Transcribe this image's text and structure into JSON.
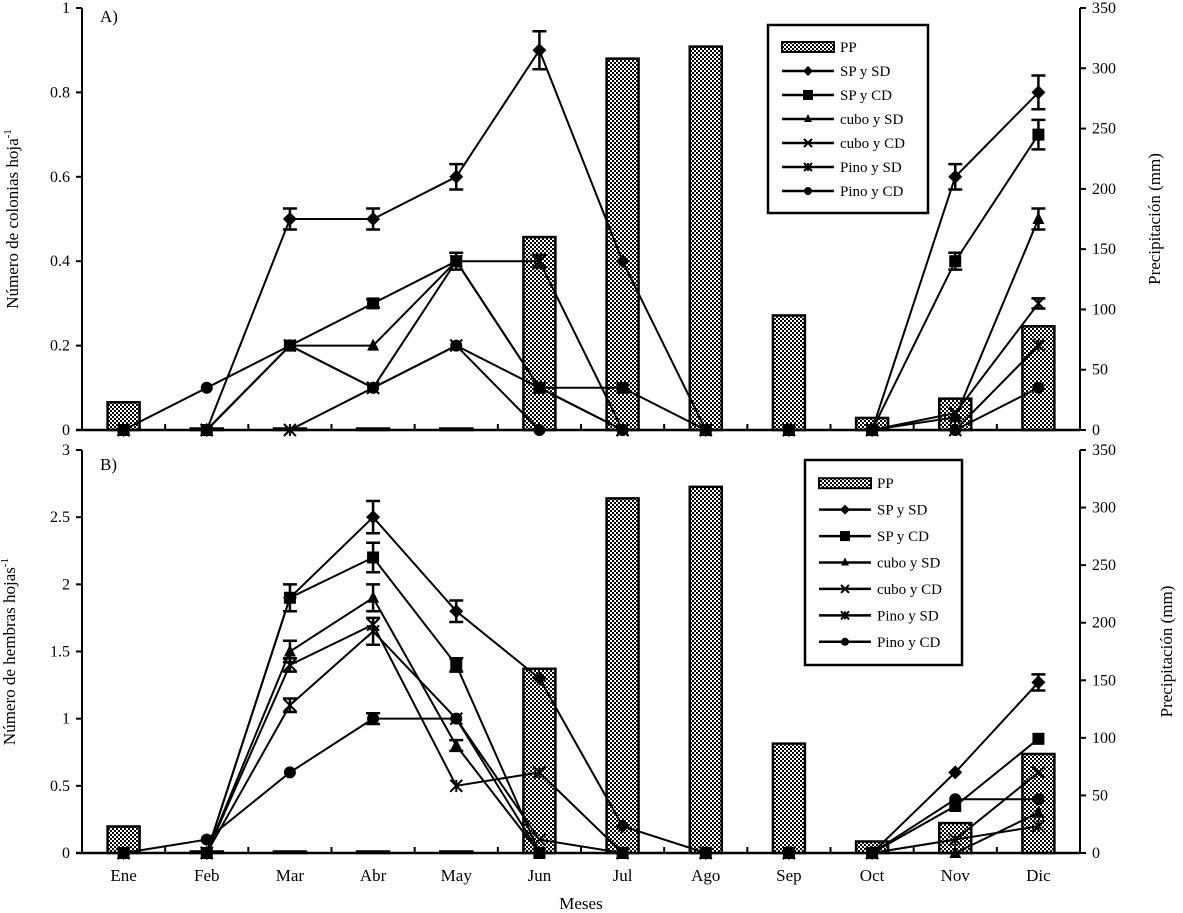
{
  "chart_data": [
    {
      "type": "bar+line",
      "panel_label": "A)",
      "xlabel": "",
      "ylabel": "Número de colonias hoja",
      "ylabel_superscript": "-1",
      "y2label": "Precipitación (mm)",
      "ylim": [
        0,
        1
      ],
      "yticks": [
        "0",
        "0.2",
        "0.4",
        "0.6",
        "0.8",
        "1"
      ],
      "y2lim": [
        0,
        350
      ],
      "y2ticks": [
        "0",
        "50",
        "100",
        "150",
        "200",
        "250",
        "300",
        "350"
      ],
      "categories": [
        "Ene",
        "Feb",
        "Mar",
        "Abr",
        "May",
        "Jun",
        "Jul",
        "Ago",
        "Sep",
        "Oct",
        "Nov",
        "Dic"
      ],
      "legend_placement": "top-right",
      "bars": {
        "name": "PP",
        "values": [
          23,
          0,
          0,
          1,
          0,
          160,
          308,
          318,
          95,
          10,
          26,
          86
        ]
      },
      "series": [
        {
          "name": "SP y SD",
          "marker": "diamond",
          "values": [
            0,
            0,
            0.5,
            0.5,
            0.6,
            0.9,
            0.4,
            0,
            0,
            0,
            0.6,
            0.8
          ],
          "err": [
            0,
            0,
            0.025,
            0.025,
            0.03,
            0.045,
            0,
            0,
            0,
            0,
            0.03,
            0.04
          ]
        },
        {
          "name": "SP y CD",
          "marker": "square",
          "values": [
            0,
            0,
            0.2,
            0.3,
            0.4,
            0.1,
            0.1,
            0,
            0,
            0,
            0.4,
            0.7
          ],
          "err": [
            0,
            0,
            0,
            0.01,
            0.02,
            0,
            0,
            0,
            0,
            0,
            0.02,
            0.035
          ]
        },
        {
          "name": "cubo y SD",
          "marker": "triangle",
          "values": [
            0,
            0,
            0.2,
            0.2,
            0.4,
            0.1,
            0,
            0,
            0,
            0,
            0.03,
            0.5
          ],
          "err": [
            0,
            0,
            0,
            0,
            0,
            0,
            0,
            0,
            0,
            0,
            0,
            0.025
          ]
        },
        {
          "name": "cubo y CD",
          "marker": "x",
          "values": [
            0,
            0,
            0.2,
            0.1,
            0.2,
            0.1,
            0,
            0,
            0,
            0,
            0.04,
            0.3
          ],
          "err": [
            0,
            0,
            0,
            0,
            0,
            0,
            0,
            0,
            0,
            0,
            0,
            0.012
          ]
        },
        {
          "name": "Pino y SD",
          "marker": "asterisk",
          "values": [
            0,
            0,
            0,
            0.1,
            0.4,
            0.4,
            0,
            0,
            0,
            0,
            0,
            0.2
          ],
          "err": [
            0,
            0,
            0,
            0,
            0,
            0.015,
            0,
            0,
            0,
            0,
            0,
            0
          ]
        },
        {
          "name": "Pino y CD",
          "marker": "circle",
          "values": [
            0,
            0.1,
            0.2,
            0.1,
            0.2,
            0,
            0,
            0,
            0,
            0,
            0,
            0.1
          ],
          "err": [
            0,
            0,
            0,
            0,
            0,
            0,
            0,
            0,
            0,
            0,
            0,
            0
          ]
        }
      ]
    },
    {
      "type": "bar+line",
      "panel_label": "B)",
      "xlabel": "Meses",
      "ylabel": "Número de hembras hojas",
      "ylabel_superscript": "-1",
      "y2label": "Precipitación (mm)",
      "ylim": [
        0,
        3
      ],
      "yticks": [
        "0",
        "0.5",
        "1",
        "1.5",
        "2",
        "2.5",
        "3"
      ],
      "y2lim": [
        0,
        350
      ],
      "y2ticks": [
        "0",
        "50",
        "100",
        "150",
        "200",
        "250",
        "300",
        "350"
      ],
      "categories": [
        "Ene",
        "Feb",
        "Mar",
        "Abr",
        "May",
        "Jun",
        "Jul",
        "Ago",
        "Sep",
        "Oct",
        "Nov",
        "Dic"
      ],
      "legend_placement": "top-right",
      "bars": {
        "name": "PP",
        "values": [
          23,
          0,
          0,
          1,
          0,
          160,
          308,
          318,
          95,
          10,
          26,
          86
        ]
      },
      "series": [
        {
          "name": "SP y SD",
          "marker": "diamond",
          "values": [
            0,
            0,
            1.9,
            2.5,
            1.8,
            1.3,
            0.2,
            0,
            0,
            0,
            0.6,
            1.27
          ],
          "err": [
            0,
            0,
            0,
            0.12,
            0.08,
            0,
            0,
            0,
            0,
            0,
            0,
            0.06
          ]
        },
        {
          "name": "SP y CD",
          "marker": "square",
          "values": [
            0,
            0,
            1.9,
            2.2,
            1.4,
            0,
            0,
            0,
            0,
            0,
            0.35,
            0.85
          ],
          "err": [
            0,
            0,
            0.1,
            0.11,
            0.05,
            0,
            0,
            0,
            0,
            0,
            0,
            0
          ]
        },
        {
          "name": "cubo y SD",
          "marker": "triangle",
          "values": [
            0,
            0,
            1.5,
            1.9,
            0.8,
            0,
            0,
            0,
            0,
            0,
            0,
            0.3
          ],
          "err": [
            0,
            0,
            0.08,
            0.1,
            0.04,
            0,
            0,
            0,
            0,
            0,
            0,
            0
          ]
        },
        {
          "name": "cubo y CD",
          "marker": "x",
          "values": [
            0,
            0,
            1.1,
            1.65,
            1.0,
            0.1,
            0,
            0,
            0,
            0,
            0.1,
            0.6
          ],
          "err": [
            0,
            0,
            0.05,
            0.1,
            0,
            0,
            0,
            0,
            0,
            0,
            0,
            0
          ]
        },
        {
          "name": "Pino y SD",
          "marker": "asterisk",
          "values": [
            0,
            0,
            1.4,
            1.7,
            0.5,
            0.6,
            0,
            0,
            0,
            0,
            0.1,
            0.2
          ],
          "err": [
            0,
            0,
            0.05,
            0,
            0,
            0,
            0,
            0,
            0,
            0,
            0,
            0
          ]
        },
        {
          "name": "Pino y CD",
          "marker": "circle",
          "values": [
            0,
            0.1,
            0.6,
            1.0,
            1.0,
            0,
            0,
            0,
            0,
            0,
            0.4,
            0.4
          ],
          "err": [
            0,
            0,
            0,
            0.04,
            0,
            0,
            0,
            0,
            0,
            0,
            0,
            0
          ]
        }
      ]
    }
  ]
}
